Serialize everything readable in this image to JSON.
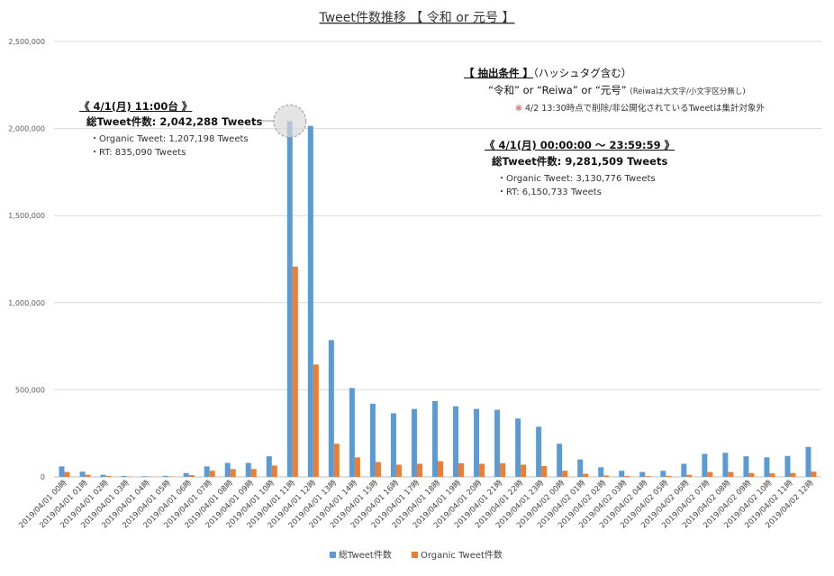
{
  "chart_data": {
    "type": "bar",
    "title": "Tweet件数推移 【 令和 or 元号 】",
    "ylim": [
      0,
      2500000
    ],
    "yticks": [
      0,
      500000,
      1000000,
      1500000,
      2000000,
      2500000
    ],
    "ytick_labels": [
      "0",
      "500,000",
      "1,000,000",
      "1,500,000",
      "2,000,000",
      "2,500,000"
    ],
    "grid": true,
    "legend_position": "bottom-center",
    "categories": [
      "2019/04/01 00時",
      "2019/04/01 01時",
      "2019/04/01 02時",
      "2019/04/01 03時",
      "2019/04/01 04時",
      "2019/04/01 05時",
      "2019/04/01 06時",
      "2019/04/01 07時",
      "2019/04/01 08時",
      "2019/04/01 09時",
      "2019/04/01 10時",
      "2019/04/01 11時",
      "2019/04/01 12時",
      "2019/04/01 13時",
      "2019/04/01 14時",
      "2019/04/01 15時",
      "2019/04/01 16時",
      "2019/04/01 17時",
      "2019/04/01 18時",
      "2019/04/01 19時",
      "2019/04/01 20時",
      "2019/04/01 21時",
      "2019/04/01 22時",
      "2019/04/01 23時",
      "2019/04/02 00時",
      "2019/04/02 01時",
      "2019/04/02 02時",
      "2019/04/02 03時",
      "2019/04/02 04時",
      "2019/04/02 05時",
      "2019/04/02 06時",
      "2019/04/02 07時",
      "2019/04/02 08時",
      "2019/04/02 09時",
      "2019/04/02 10時",
      "2019/04/02 11時",
      "2019/04/02 12時"
    ],
    "series": [
      {
        "name": "総Tweet件数",
        "color": "#5b9bd5",
        "values": [
          60000,
          30000,
          12000,
          6000,
          4000,
          6000,
          22000,
          60000,
          80000,
          80000,
          118000,
          2042288,
          2015000,
          785000,
          510000,
          420000,
          365000,
          390000,
          435000,
          405000,
          390000,
          385000,
          335000,
          288000,
          190000,
          100000,
          55000,
          35000,
          28000,
          35000,
          75000,
          132000,
          138000,
          118000,
          112000,
          120000,
          172000
        ]
      },
      {
        "name": "Organic Tweet件数",
        "color": "#ed7d31",
        "values": [
          28000,
          12000,
          5000,
          2000,
          1500,
          2000,
          10000,
          35000,
          45000,
          45000,
          65000,
          1207198,
          645000,
          190000,
          112000,
          85000,
          70000,
          75000,
          90000,
          78000,
          75000,
          78000,
          70000,
          62000,
          35000,
          18000,
          8000,
          5000,
          4000,
          6000,
          12000,
          28000,
          28000,
          22000,
          20000,
          22000,
          30000
        ]
      }
    ]
  },
  "annotations": {
    "peak": {
      "title": "《 4/1(月) 11:00台 》",
      "total": "総Tweet件数:  2,042,288 Tweets",
      "organic": "・Organic Tweet:   1,207,198 Tweets",
      "rt": "・RT:   835,090 Tweets"
    },
    "conditions": {
      "title": "【 抽出条件 】",
      "title_suffix": "（ハッシュタグ含む）",
      "query": "“令和” or “Reiwa” or “元号”",
      "query_note": "(Reiwaは大文字/小文字区分無し)",
      "note_mark": "※",
      "note": "4/2 13:30時点で削除/非公開化されているTweetは集計対象外"
    },
    "daily": {
      "title": "《 4/1(月) 00:00:00 〜 23:59:59 》",
      "total": "総Tweet件数:  9,281,509 Tweets",
      "organic": "・Organic Tweet:   3,130,776 Tweets",
      "rt": "・RT:   6,150,733 Tweets"
    }
  }
}
